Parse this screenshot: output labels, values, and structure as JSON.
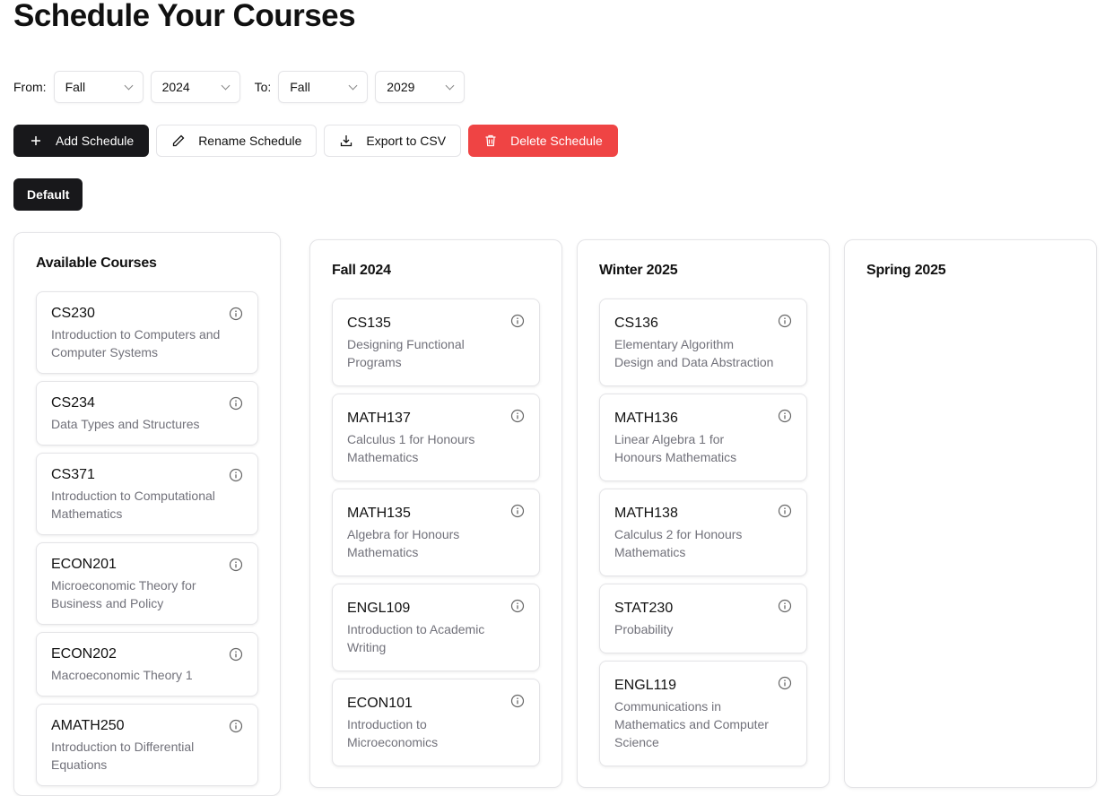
{
  "title": "Schedule Your Courses",
  "range": {
    "from_label": "From:",
    "from_term": "Fall",
    "from_year": "2024",
    "to_label": "To:",
    "to_term": "Fall",
    "to_year": "2029"
  },
  "toolbar": {
    "add": "Add Schedule",
    "rename": "Rename Schedule",
    "export": "Export to CSV",
    "delete": "Delete Schedule"
  },
  "colors": {
    "primary": "#18181b",
    "danger": "#ef4444"
  },
  "schedules": [
    {
      "label": "Default"
    }
  ],
  "available": {
    "title": "Available Courses",
    "courses": [
      {
        "code": "CS230",
        "name": "Introduction to Computers and Computer Systems"
      },
      {
        "code": "CS234",
        "name": "Data Types and Structures"
      },
      {
        "code": "CS371",
        "name": "Introduction to Computational Mathematics"
      },
      {
        "code": "ECON201",
        "name": "Microeconomic Theory for Business and Policy"
      },
      {
        "code": "ECON202",
        "name": "Macroeconomic Theory 1"
      },
      {
        "code": "AMATH250",
        "name": "Introduction to Differential Equations"
      }
    ]
  },
  "terms": [
    {
      "title": "Fall 2024",
      "courses": [
        {
          "code": "CS135",
          "name": "Designing Functional Programs"
        },
        {
          "code": "MATH137",
          "name": "Calculus 1 for Honours Mathematics"
        },
        {
          "code": "MATH135",
          "name": "Algebra for Honours Mathematics"
        },
        {
          "code": "ENGL109",
          "name": "Introduction to Academic Writing"
        },
        {
          "code": "ECON101",
          "name": "Introduction to Microeconomics"
        }
      ]
    },
    {
      "title": "Winter 2025",
      "courses": [
        {
          "code": "CS136",
          "name": "Elementary Algorithm Design and Data Abstraction"
        },
        {
          "code": "MATH136",
          "name": "Linear Algebra 1 for Honours Mathematics"
        },
        {
          "code": "MATH138",
          "name": "Calculus 2 for Honours Mathematics"
        },
        {
          "code": "STAT230",
          "name": "Probability"
        },
        {
          "code": "ENGL119",
          "name": "Communications in Mathematics and Computer Science"
        }
      ]
    },
    {
      "title": "Spring 2025",
      "courses": []
    }
  ]
}
